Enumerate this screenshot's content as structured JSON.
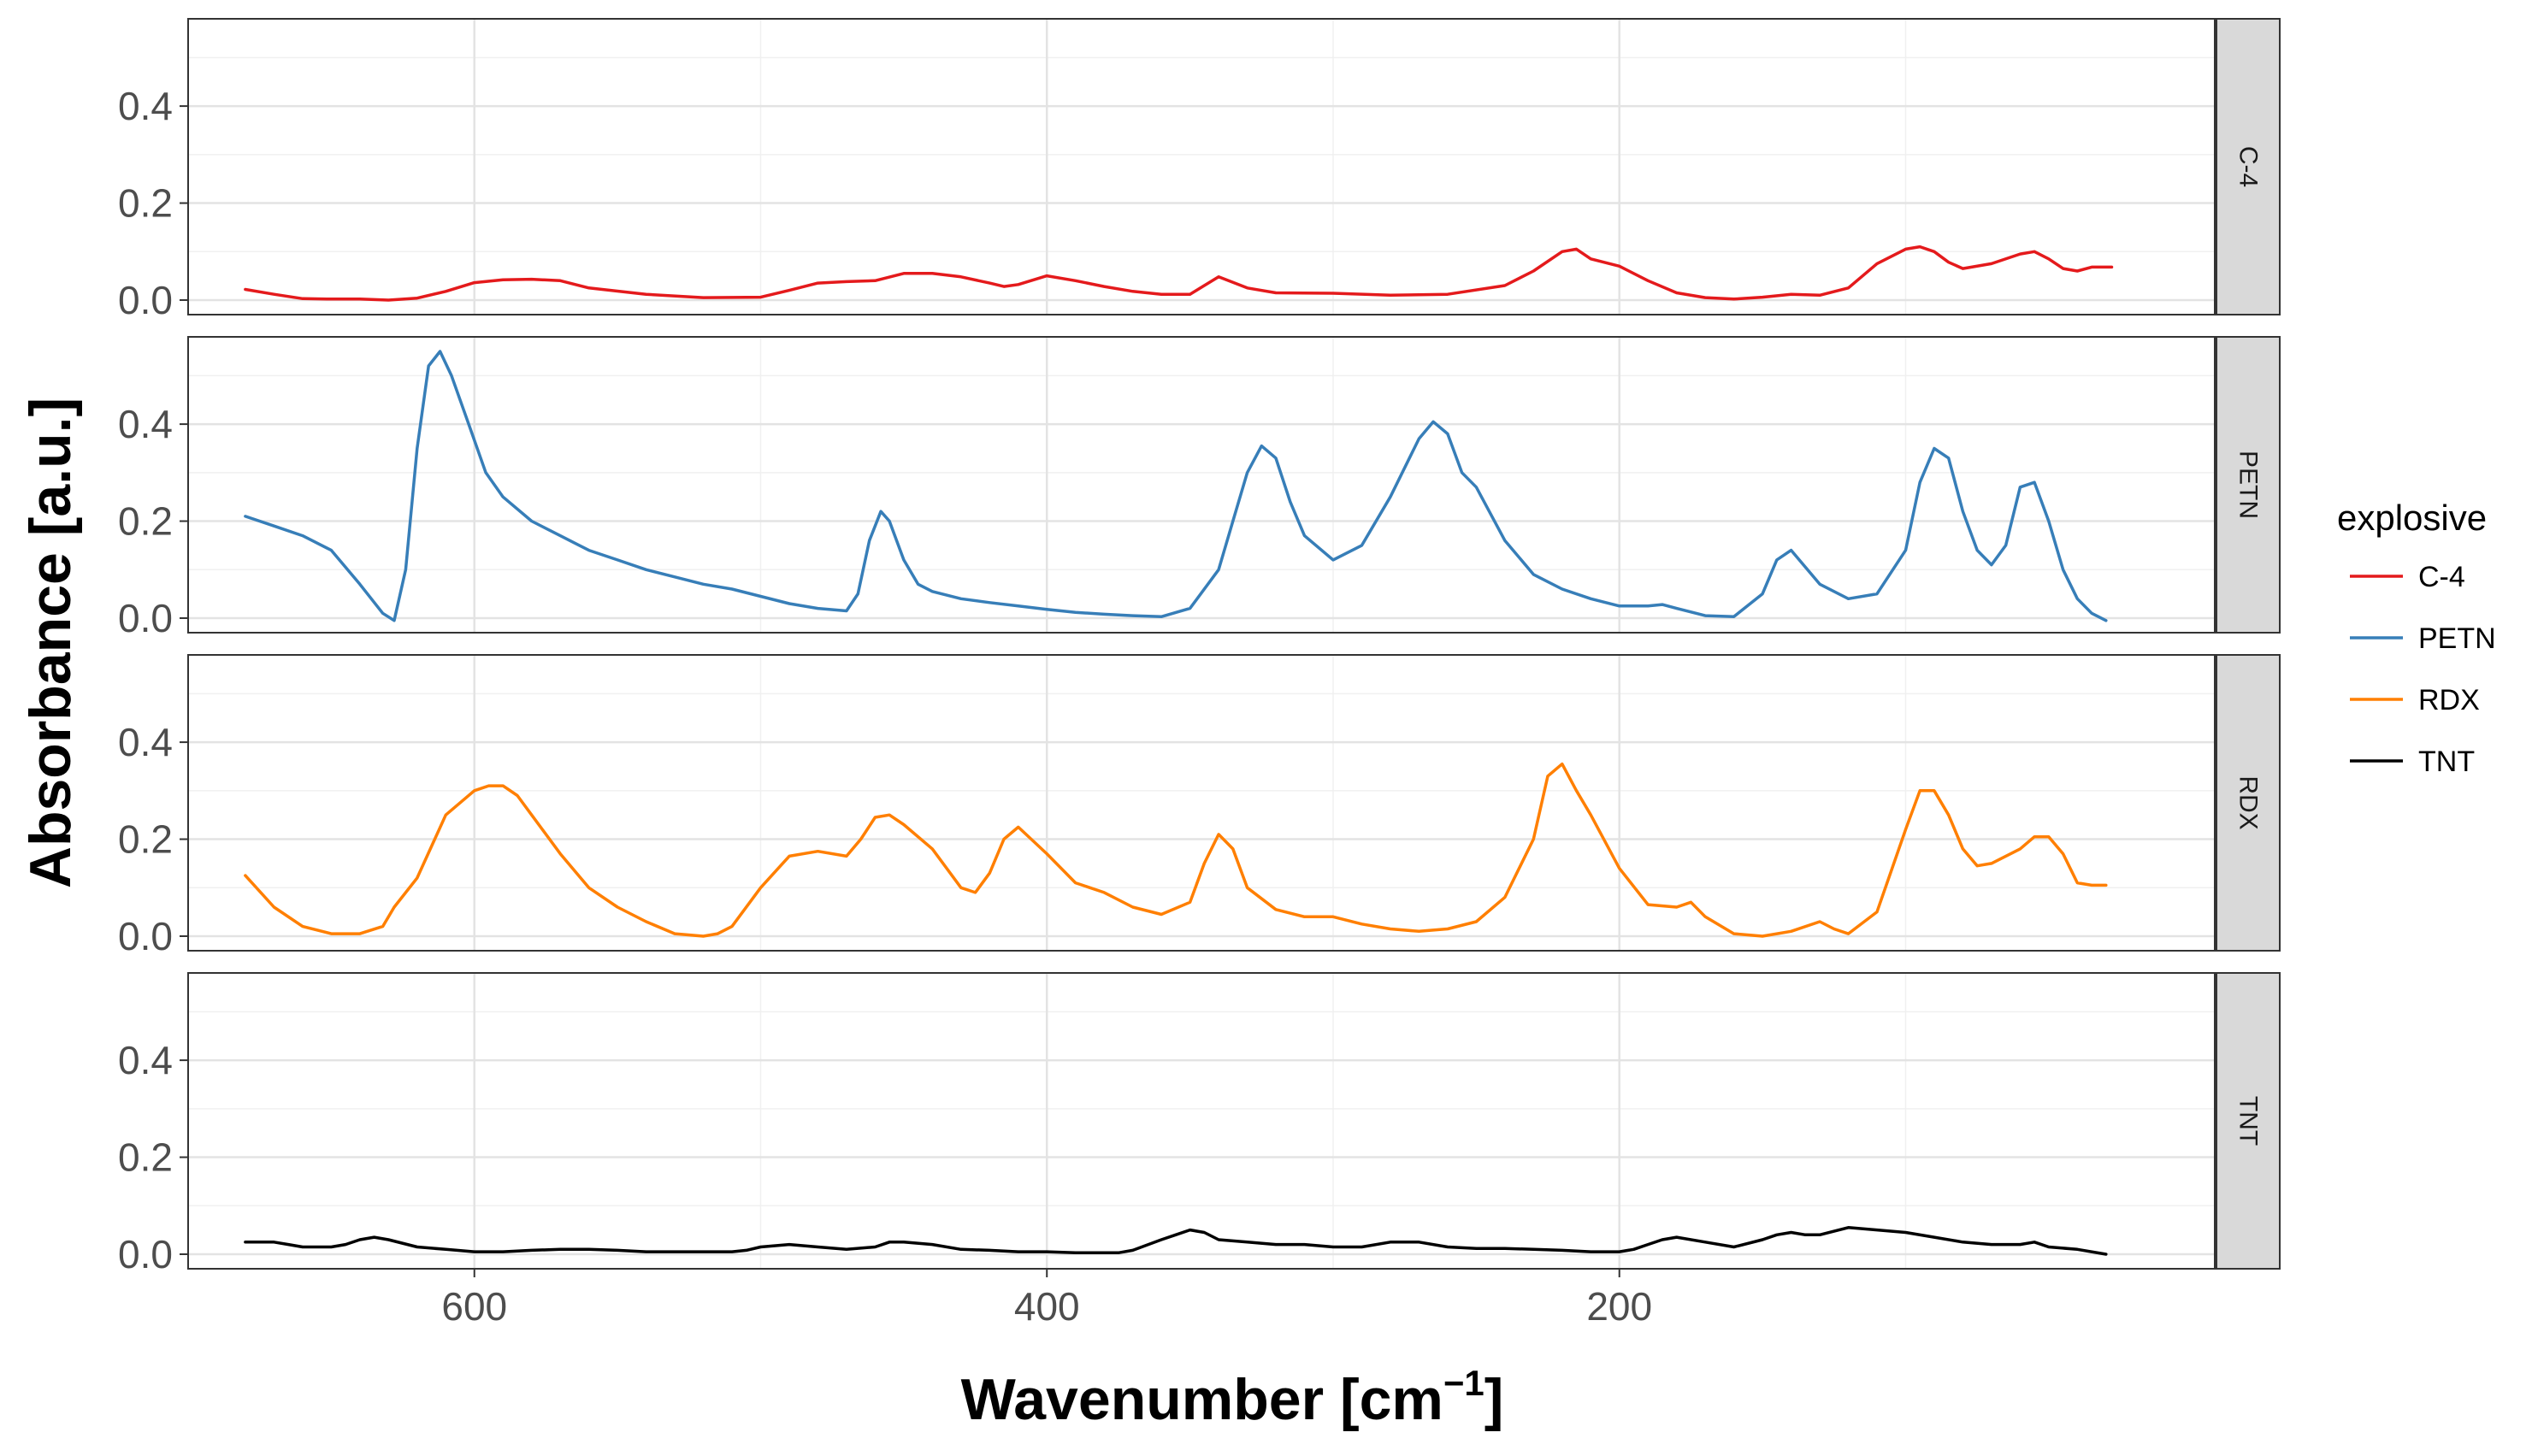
{
  "chart_data": {
    "type": "line",
    "xlabel": "Wavenumber [cm",
    "xlabel_sup": "−1",
    "xlabel_end": "]",
    "ylabel": "Absorbance [a.u.]",
    "xlim": [
      -8,
      700
    ],
    "x_reversed": true,
    "ylim": [
      -0.03,
      0.58
    ],
    "x_ticks": [
      600,
      400,
      200
    ],
    "y_ticks": [
      "0.0",
      "0.2",
      "0.4"
    ],
    "y_tick_values": [
      0.0,
      0.2,
      0.4
    ],
    "grid": true,
    "legend_title": "explosive",
    "legend_position": "right",
    "series": [
      {
        "name": "C-4",
        "color": "#e41a1c",
        "x": [
          680,
          670,
          660,
          650,
          640,
          630,
          620,
          610,
          600,
          590,
          580,
          570,
          560,
          540,
          520,
          500,
          490,
          480,
          470,
          460,
          450,
          440,
          430,
          420,
          415,
          410,
          400,
          390,
          380,
          370,
          360,
          350,
          345,
          340,
          330,
          320,
          300,
          280,
          260,
          240,
          230,
          220,
          215,
          210,
          200,
          190,
          180,
          170,
          160,
          150,
          140,
          130,
          120,
          110,
          100,
          95,
          90,
          85,
          80,
          70,
          60,
          55,
          50,
          45,
          40,
          35,
          28
        ],
        "y": [
          0.022,
          0.012,
          0.003,
          0.002,
          0.002,
          0.0,
          0.004,
          0.018,
          0.036,
          0.042,
          0.043,
          0.04,
          0.025,
          0.012,
          0.005,
          0.006,
          0.02,
          0.035,
          0.038,
          0.04,
          0.055,
          0.055,
          0.048,
          0.035,
          0.028,
          0.032,
          0.05,
          0.04,
          0.028,
          0.018,
          0.012,
          0.012,
          0.03,
          0.048,
          0.025,
          0.015,
          0.014,
          0.01,
          0.012,
          0.03,
          0.06,
          0.1,
          0.105,
          0.085,
          0.07,
          0.04,
          0.015,
          0.005,
          0.002,
          0.006,
          0.012,
          0.01,
          0.025,
          0.075,
          0.105,
          0.11,
          0.1,
          0.078,
          0.065,
          0.075,
          0.095,
          0.1,
          0.085,
          0.065,
          0.06,
          0.068,
          0.068
        ]
      },
      {
        "name": "PETN",
        "color": "#377eb8",
        "x": [
          680,
          670,
          660,
          650,
          640,
          632,
          628,
          624,
          620,
          616,
          612,
          608,
          602,
          596,
          590,
          580,
          570,
          560,
          550,
          540,
          530,
          520,
          510,
          500,
          490,
          480,
          470,
          466,
          462,
          458,
          455,
          450,
          445,
          440,
          430,
          420,
          410,
          400,
          390,
          380,
          370,
          360,
          350,
          340,
          335,
          330,
          325,
          320,
          315,
          310,
          300,
          290,
          280,
          270,
          265,
          260,
          255,
          250,
          240,
          230,
          220,
          210,
          200,
          190,
          185,
          180,
          170,
          160,
          150,
          145,
          140,
          130,
          120,
          110,
          100,
          95,
          90,
          85,
          80,
          75,
          70,
          65,
          60,
          55,
          50,
          45,
          40,
          35,
          30
        ],
        "y": [
          0.21,
          0.19,
          0.17,
          0.14,
          0.07,
          0.01,
          -0.005,
          0.1,
          0.35,
          0.52,
          0.55,
          0.5,
          0.4,
          0.3,
          0.25,
          0.2,
          0.17,
          0.14,
          0.12,
          0.1,
          0.085,
          0.07,
          0.06,
          0.045,
          0.03,
          0.02,
          0.015,
          0.05,
          0.16,
          0.22,
          0.2,
          0.12,
          0.07,
          0.055,
          0.04,
          0.032,
          0.025,
          0.018,
          0.012,
          0.008,
          0.005,
          0.003,
          0.02,
          0.1,
          0.2,
          0.3,
          0.355,
          0.33,
          0.24,
          0.17,
          0.12,
          0.15,
          0.25,
          0.37,
          0.405,
          0.38,
          0.3,
          0.27,
          0.16,
          0.09,
          0.06,
          0.04,
          0.025,
          0.025,
          0.028,
          0.02,
          0.005,
          0.003,
          0.05,
          0.12,
          0.14,
          0.07,
          0.04,
          0.05,
          0.14,
          0.28,
          0.35,
          0.33,
          0.22,
          0.14,
          0.11,
          0.15,
          0.27,
          0.28,
          0.2,
          0.1,
          0.04,
          0.01,
          -0.005
        ]
      },
      {
        "name": "RDX",
        "color": "#ff7f00",
        "x": [
          680,
          670,
          660,
          650,
          640,
          632,
          628,
          620,
          610,
          600,
          595,
          590,
          585,
          580,
          570,
          560,
          550,
          540,
          530,
          520,
          515,
          510,
          500,
          490,
          480,
          470,
          465,
          460,
          455,
          450,
          440,
          430,
          425,
          420,
          415,
          410,
          400,
          390,
          380,
          370,
          360,
          350,
          345,
          340,
          335,
          330,
          320,
          310,
          300,
          290,
          280,
          270,
          260,
          250,
          240,
          230,
          225,
          220,
          215,
          210,
          200,
          190,
          180,
          175,
          170,
          160,
          150,
          140,
          130,
          125,
          120,
          110,
          100,
          95,
          90,
          85,
          80,
          75,
          70,
          60,
          55,
          50,
          45,
          40,
          35,
          30
        ],
        "y": [
          0.125,
          0.06,
          0.02,
          0.005,
          0.005,
          0.02,
          0.06,
          0.12,
          0.25,
          0.3,
          0.31,
          0.31,
          0.29,
          0.25,
          0.17,
          0.1,
          0.06,
          0.03,
          0.005,
          0.0,
          0.005,
          0.02,
          0.1,
          0.165,
          0.175,
          0.165,
          0.2,
          0.245,
          0.25,
          0.23,
          0.18,
          0.1,
          0.09,
          0.13,
          0.2,
          0.225,
          0.17,
          0.11,
          0.09,
          0.06,
          0.045,
          0.07,
          0.15,
          0.21,
          0.18,
          0.1,
          0.055,
          0.04,
          0.04,
          0.025,
          0.015,
          0.01,
          0.015,
          0.03,
          0.08,
          0.2,
          0.33,
          0.355,
          0.3,
          0.25,
          0.14,
          0.065,
          0.06,
          0.07,
          0.04,
          0.005,
          0.0,
          0.01,
          0.03,
          0.015,
          0.005,
          0.05,
          0.22,
          0.3,
          0.3,
          0.25,
          0.18,
          0.145,
          0.15,
          0.18,
          0.205,
          0.205,
          0.17,
          0.11,
          0.105,
          0.105
        ]
      },
      {
        "name": "TNT",
        "color": "#000000",
        "x": [
          680,
          670,
          665,
          660,
          650,
          645,
          640,
          635,
          630,
          620,
          610,
          600,
          590,
          580,
          570,
          560,
          550,
          540,
          530,
          520,
          510,
          505,
          500,
          490,
          480,
          470,
          460,
          455,
          450,
          440,
          430,
          420,
          410,
          400,
          390,
          380,
          375,
          370,
          360,
          355,
          350,
          345,
          340,
          330,
          320,
          310,
          300,
          290,
          280,
          270,
          260,
          250,
          240,
          230,
          220,
          210,
          200,
          195,
          190,
          185,
          180,
          170,
          160,
          150,
          145,
          140,
          135,
          130,
          120,
          110,
          100,
          90,
          80,
          70,
          60,
          55,
          50,
          40,
          30
        ],
        "y": [
          0.025,
          0.025,
          0.02,
          0.015,
          0.015,
          0.02,
          0.03,
          0.035,
          0.03,
          0.015,
          0.01,
          0.005,
          0.005,
          0.008,
          0.01,
          0.01,
          0.008,
          0.005,
          0.005,
          0.005,
          0.005,
          0.008,
          0.015,
          0.02,
          0.015,
          0.01,
          0.015,
          0.025,
          0.025,
          0.02,
          0.01,
          0.008,
          0.005,
          0.005,
          0.003,
          0.003,
          0.003,
          0.008,
          0.03,
          0.04,
          0.05,
          0.045,
          0.03,
          0.025,
          0.02,
          0.02,
          0.015,
          0.015,
          0.025,
          0.025,
          0.015,
          0.012,
          0.012,
          0.01,
          0.008,
          0.005,
          0.005,
          0.01,
          0.02,
          0.03,
          0.035,
          0.025,
          0.015,
          0.03,
          0.04,
          0.045,
          0.04,
          0.04,
          0.055,
          0.05,
          0.045,
          0.035,
          0.025,
          0.02,
          0.02,
          0.025,
          0.015,
          0.01,
          0.0
        ]
      }
    ]
  }
}
